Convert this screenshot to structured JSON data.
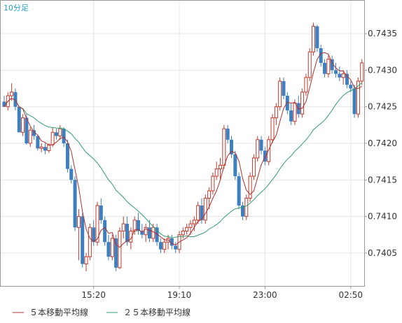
{
  "chart_data": {
    "type": "candlestick",
    "period_label": "10分足",
    "x_ticks": [
      "15:20",
      "19:10",
      "23:00",
      "02:50"
    ],
    "y_ticks": [
      "0.7405",
      "0.7410",
      "0.7415",
      "0.7420",
      "0.7425",
      "0.7430",
      "0.7435"
    ],
    "ylim": [
      0.74005,
      0.74395
    ],
    "grid": true,
    "colors": {
      "up": "#c0392b",
      "down": "#3d7fbf",
      "ma5": "#b03030",
      "ma25": "#2e9e6e",
      "grid": "#e6e6e6",
      "axis": "#999999",
      "period": "#2aa5c8"
    },
    "legend": [
      {
        "key": "ma5",
        "label": "５本移動平均線"
      },
      {
        "key": "ma25",
        "label": "２５本移動平均線"
      }
    ],
    "candles": [
      [
        0.74257,
        0.74265,
        0.7425,
        0.7425
      ],
      [
        0.7425,
        0.7427,
        0.74245,
        0.74265
      ],
      [
        0.74265,
        0.74282,
        0.74258,
        0.7427
      ],
      [
        0.7427,
        0.74275,
        0.74245,
        0.7425
      ],
      [
        0.7425,
        0.7425,
        0.74215,
        0.74215
      ],
      [
        0.74215,
        0.7424,
        0.7421,
        0.74235
      ],
      [
        0.74235,
        0.7424,
        0.74198,
        0.742
      ],
      [
        0.742,
        0.74222,
        0.74195,
        0.74218
      ],
      [
        0.74218,
        0.74225,
        0.74205,
        0.7421
      ],
      [
        0.7421,
        0.74212,
        0.7419,
        0.74193
      ],
      [
        0.74193,
        0.742,
        0.74188,
        0.74195
      ],
      [
        0.74195,
        0.742,
        0.74185,
        0.7419
      ],
      [
        0.7419,
        0.742,
        0.74187,
        0.74198
      ],
      [
        0.74198,
        0.74222,
        0.74195,
        0.74215
      ],
      [
        0.74215,
        0.7422,
        0.74205,
        0.7421
      ],
      [
        0.7421,
        0.74225,
        0.74205,
        0.7422
      ],
      [
        0.7422,
        0.74222,
        0.74195,
        0.742
      ],
      [
        0.742,
        0.74205,
        0.7416,
        0.74165
      ],
      [
        0.74165,
        0.7417,
        0.74145,
        0.7415
      ],
      [
        0.7415,
        0.74155,
        0.7408,
        0.74085
      ],
      [
        0.74085,
        0.7411,
        0.7404,
        0.741
      ],
      [
        0.741,
        0.74105,
        0.7403,
        0.74035
      ],
      [
        0.74035,
        0.7405,
        0.74025,
        0.74045
      ],
      [
        0.74045,
        0.7409,
        0.7404,
        0.74085
      ],
      [
        0.74085,
        0.74095,
        0.7406,
        0.74065
      ],
      [
        0.74065,
        0.7412,
        0.7406,
        0.74115
      ],
      [
        0.74115,
        0.74125,
        0.7409,
        0.74095
      ],
      [
        0.74095,
        0.741,
        0.7406,
        0.74065
      ],
      [
        0.74065,
        0.74075,
        0.7404,
        0.74045
      ],
      [
        0.74045,
        0.74075,
        0.7404,
        0.7407
      ],
      [
        0.7407,
        0.74075,
        0.74025,
        0.7403
      ],
      [
        0.7403,
        0.74085,
        0.74028,
        0.7408
      ],
      [
        0.7408,
        0.741,
        0.7407,
        0.7409
      ],
      [
        0.7409,
        0.741,
        0.7406,
        0.74065
      ],
      [
        0.74065,
        0.74085,
        0.74055,
        0.7408
      ],
      [
        0.7408,
        0.741,
        0.74075,
        0.74095
      ],
      [
        0.74095,
        0.74105,
        0.74075,
        0.7408
      ],
      [
        0.7408,
        0.7409,
        0.7407,
        0.74075
      ],
      [
        0.74075,
        0.7409,
        0.74065,
        0.74085
      ],
      [
        0.74085,
        0.74095,
        0.74065,
        0.7407
      ],
      [
        0.7407,
        0.7409,
        0.74065,
        0.74085
      ],
      [
        0.74085,
        0.7409,
        0.7406,
        0.74065
      ],
      [
        0.74065,
        0.7407,
        0.7405,
        0.74055
      ],
      [
        0.74055,
        0.7407,
        0.7405,
        0.74065
      ],
      [
        0.74065,
        0.74075,
        0.74055,
        0.7407
      ],
      [
        0.7407,
        0.74075,
        0.74055,
        0.7406
      ],
      [
        0.7406,
        0.74065,
        0.7405,
        0.74055
      ],
      [
        0.74055,
        0.7408,
        0.7405,
        0.74075
      ],
      [
        0.74075,
        0.74085,
        0.7407,
        0.7408
      ],
      [
        0.7408,
        0.7409,
        0.74075,
        0.74085
      ],
      [
        0.74085,
        0.74095,
        0.74075,
        0.7409
      ],
      [
        0.7409,
        0.741,
        0.7408,
        0.74095
      ],
      [
        0.74095,
        0.7412,
        0.7409,
        0.74115
      ],
      [
        0.74115,
        0.74125,
        0.7409,
        0.74095
      ],
      [
        0.74095,
        0.7413,
        0.7409,
        0.74125
      ],
      [
        0.74125,
        0.7414,
        0.7411,
        0.74135
      ],
      [
        0.74135,
        0.7416,
        0.7413,
        0.74155
      ],
      [
        0.74155,
        0.74175,
        0.7415,
        0.74165
      ],
      [
        0.74165,
        0.7418,
        0.7415,
        0.7417
      ],
      [
        0.7417,
        0.74225,
        0.74165,
        0.7422
      ],
      [
        0.7422,
        0.74225,
        0.742,
        0.74205
      ],
      [
        0.74205,
        0.7421,
        0.7418,
        0.74185
      ],
      [
        0.74185,
        0.7419,
        0.7415,
        0.74155
      ],
      [
        0.74155,
        0.7416,
        0.7411,
        0.74115
      ],
      [
        0.74115,
        0.7412,
        0.74095,
        0.741
      ],
      [
        0.741,
        0.7413,
        0.74095,
        0.74125
      ],
      [
        0.74125,
        0.7416,
        0.7412,
        0.74155
      ],
      [
        0.74155,
        0.74185,
        0.7415,
        0.7418
      ],
      [
        0.7418,
        0.7421,
        0.74175,
        0.74205
      ],
      [
        0.74205,
        0.7421,
        0.74185,
        0.7419
      ],
      [
        0.7419,
        0.74195,
        0.7417,
        0.74175
      ],
      [
        0.74175,
        0.7421,
        0.7417,
        0.74205
      ],
      [
        0.74205,
        0.7424,
        0.742,
        0.74235
      ],
      [
        0.74235,
        0.74255,
        0.74225,
        0.7425
      ],
      [
        0.7425,
        0.7429,
        0.74245,
        0.74285
      ],
      [
        0.74285,
        0.7429,
        0.7426,
        0.74265
      ],
      [
        0.74265,
        0.7427,
        0.7424,
        0.74245
      ],
      [
        0.74245,
        0.74255,
        0.74225,
        0.7423
      ],
      [
        0.7423,
        0.7426,
        0.74225,
        0.74255
      ],
      [
        0.74255,
        0.74265,
        0.74235,
        0.7424
      ],
      [
        0.7424,
        0.74275,
        0.74235,
        0.7427
      ],
      [
        0.7427,
        0.74295,
        0.74265,
        0.7429
      ],
      [
        0.7429,
        0.7433,
        0.74285,
        0.74325
      ],
      [
        0.74325,
        0.74365,
        0.7432,
        0.7436
      ],
      [
        0.7436,
        0.74362,
        0.74325,
        0.7433
      ],
      [
        0.7433,
        0.74335,
        0.74305,
        0.7431
      ],
      [
        0.7431,
        0.74315,
        0.7429,
        0.74295
      ],
      [
        0.74295,
        0.7432,
        0.7429,
        0.74315
      ],
      [
        0.74315,
        0.7432,
        0.74295,
        0.743
      ],
      [
        0.743,
        0.7431,
        0.7429,
        0.74295
      ],
      [
        0.74295,
        0.74305,
        0.74285,
        0.7429
      ],
      [
        0.7429,
        0.743,
        0.7428,
        0.74295
      ],
      [
        0.74295,
        0.743,
        0.74275,
        0.7428
      ],
      [
        0.7428,
        0.74285,
        0.7427,
        0.74275
      ],
      [
        0.74275,
        0.7428,
        0.74235,
        0.7424
      ],
      [
        0.7424,
        0.7429,
        0.74235,
        0.74285
      ],
      [
        0.74285,
        0.74315,
        0.7428,
        0.7431
      ]
    ]
  }
}
